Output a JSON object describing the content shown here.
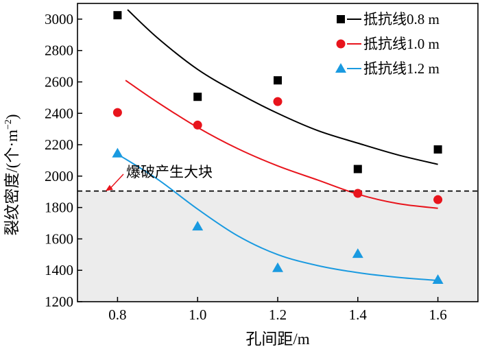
{
  "chart_data": {
    "type": "scatter",
    "xlabel": "孔间距/m",
    "ylabel_main": "裂纹密度/(个·m",
    "ylabel_sup": "−2",
    "ylabel_close": ")",
    "xlim": [
      0.7,
      1.7
    ],
    "ylim": [
      1200,
      3100
    ],
    "xticks": [
      0.8,
      1.0,
      1.2,
      1.4,
      1.6
    ],
    "xtick_labels": [
      "0.8",
      "1.0",
      "1.2",
      "1.4",
      "1.6"
    ],
    "yticks": [
      1200,
      1400,
      1600,
      1800,
      2000,
      2200,
      2400,
      2600,
      2800,
      3000
    ],
    "ytick_labels": [
      "1200",
      "1400",
      "1600",
      "1800",
      "2000",
      "2200",
      "2400",
      "2600",
      "2800",
      "3000"
    ],
    "legend_position": "top-right",
    "series": [
      {
        "name": "抵抗线0.8 m",
        "marker": "square",
        "color": "#000000",
        "points": [
          [
            0.8,
            3025
          ],
          [
            1.0,
            2505
          ],
          [
            1.2,
            2610
          ],
          [
            1.4,
            2045
          ],
          [
            1.6,
            2170
          ]
        ],
        "fit": [
          [
            0.825,
            3060
          ],
          [
            0.9,
            2880
          ],
          [
            1.0,
            2680
          ],
          [
            1.1,
            2530
          ],
          [
            1.2,
            2400
          ],
          [
            1.3,
            2290
          ],
          [
            1.4,
            2210
          ],
          [
            1.5,
            2135
          ],
          [
            1.6,
            2075
          ]
        ]
      },
      {
        "name": "抵抗线1.0 m",
        "marker": "circle",
        "color": "#e8141c",
        "points": [
          [
            0.8,
            2405
          ],
          [
            1.0,
            2325
          ],
          [
            1.2,
            2475
          ],
          [
            1.4,
            1890
          ],
          [
            1.6,
            1850
          ]
        ],
        "fit": [
          [
            0.82,
            2610
          ],
          [
            0.9,
            2470
          ],
          [
            1.0,
            2310
          ],
          [
            1.1,
            2175
          ],
          [
            1.2,
            2065
          ],
          [
            1.3,
            1975
          ],
          [
            1.4,
            1885
          ],
          [
            1.5,
            1825
          ],
          [
            1.6,
            1795
          ]
        ]
      },
      {
        "name": "抵抗线1.2 m",
        "marker": "triangle",
        "color": "#1a9ae0",
        "points": [
          [
            0.8,
            2145
          ],
          [
            1.0,
            1680
          ],
          [
            1.2,
            1415
          ],
          [
            1.4,
            1505
          ],
          [
            1.6,
            1340
          ]
        ],
        "fit": [
          [
            0.8,
            2140
          ],
          [
            0.9,
            1980
          ],
          [
            1.0,
            1790
          ],
          [
            1.1,
            1620
          ],
          [
            1.2,
            1500
          ],
          [
            1.3,
            1430
          ],
          [
            1.4,
            1385
          ],
          [
            1.5,
            1355
          ],
          [
            1.6,
            1335
          ]
        ]
      }
    ],
    "threshold": {
      "y": 1905,
      "label": "爆破产生大块",
      "arrow_to": [
        0.77,
        1905
      ]
    },
    "shaded_region": {
      "color": "#ececec",
      "from_y": 1200,
      "to_y": 1905
    }
  }
}
